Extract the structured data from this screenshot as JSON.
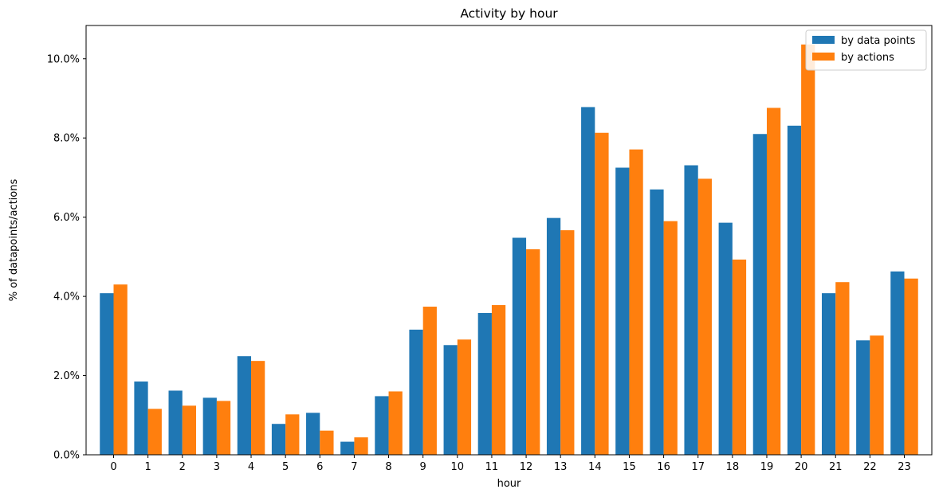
{
  "chart_data": {
    "type": "bar",
    "title": "Activity by hour",
    "xlabel": "hour",
    "ylabel": "% of datapoints/actions",
    "categories": [
      "0",
      "1",
      "2",
      "3",
      "4",
      "5",
      "6",
      "7",
      "8",
      "9",
      "10",
      "11",
      "12",
      "13",
      "14",
      "15",
      "16",
      "17",
      "18",
      "19",
      "20",
      "21",
      "22",
      "23"
    ],
    "series": [
      {
        "name": "by data points",
        "color": "#1f77b4",
        "values": [
          4.08,
          1.85,
          1.62,
          1.44,
          2.49,
          0.78,
          1.06,
          0.33,
          1.48,
          3.16,
          2.77,
          3.58,
          5.48,
          5.98,
          8.78,
          7.25,
          6.7,
          7.31,
          5.86,
          8.1,
          8.31,
          4.08,
          2.89,
          4.63
        ]
      },
      {
        "name": "by actions",
        "color": "#ff7f0e",
        "values": [
          4.3,
          1.16,
          1.24,
          1.36,
          2.37,
          1.02,
          0.61,
          0.44,
          1.6,
          3.74,
          2.91,
          3.78,
          5.19,
          5.67,
          8.13,
          7.71,
          5.9,
          6.97,
          4.93,
          8.76,
          10.36,
          4.36,
          3.01,
          4.45
        ]
      }
    ],
    "ylim": [
      0,
      10.84
    ],
    "yticks": [
      0,
      2,
      4,
      6,
      8,
      10
    ],
    "ytick_labels": [
      "0.0%",
      "2.0%",
      "4.0%",
      "6.0%",
      "8.0%",
      "10.0%"
    ],
    "grid": false,
    "legend_position": "top-right"
  }
}
